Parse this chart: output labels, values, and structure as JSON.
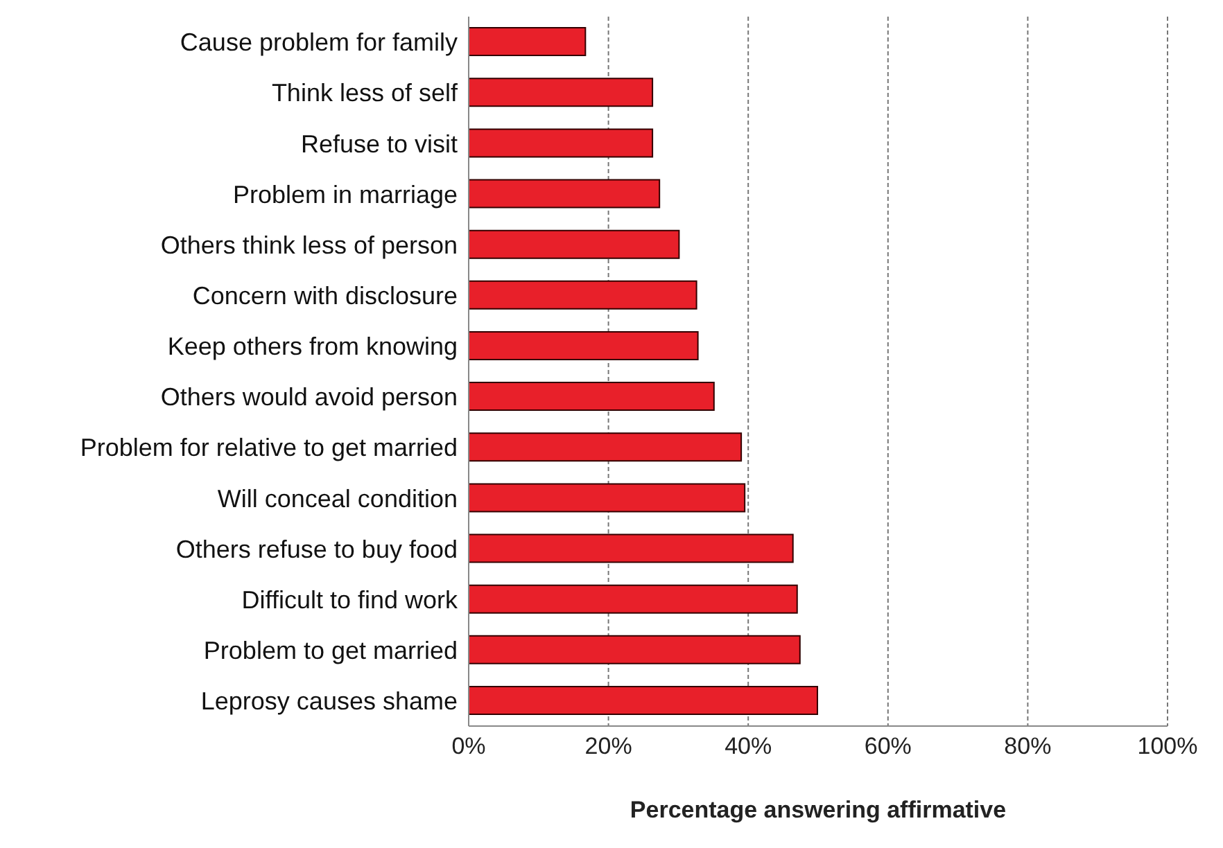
{
  "chart_data": {
    "type": "bar",
    "orientation": "horizontal",
    "xlabel": "Percentage answering affirmative",
    "categories": [
      "Cause problem for family",
      "Think less of self",
      "Refuse to visit",
      "Problem in marriage",
      "Others think less of person",
      "Concern with disclosure",
      "Keep others from knowing",
      "Others would avoid person",
      "Problem for relative to get married",
      "Will conceal condition",
      "Others refuse to buy food",
      "Difficult to find work",
      "Problem to get married",
      "Leprosy causes shame"
    ],
    "values": [
      16.7,
      26.3,
      26.3,
      27.3,
      30.1,
      32.6,
      32.8,
      35.1,
      39.0,
      39.5,
      46.4,
      47.0,
      47.4,
      49.9
    ],
    "color": "#e8202a",
    "xlim": [
      0,
      100
    ],
    "xticks": [
      {
        "value": 0,
        "label": "0%"
      },
      {
        "value": 20,
        "label": "20%"
      },
      {
        "value": 40,
        "label": "40%"
      },
      {
        "value": 60,
        "label": "60%"
      },
      {
        "value": 80,
        "label": "80%"
      },
      {
        "value": 100,
        "label": "100%"
      }
    ],
    "grid": "x",
    "legend": false
  }
}
